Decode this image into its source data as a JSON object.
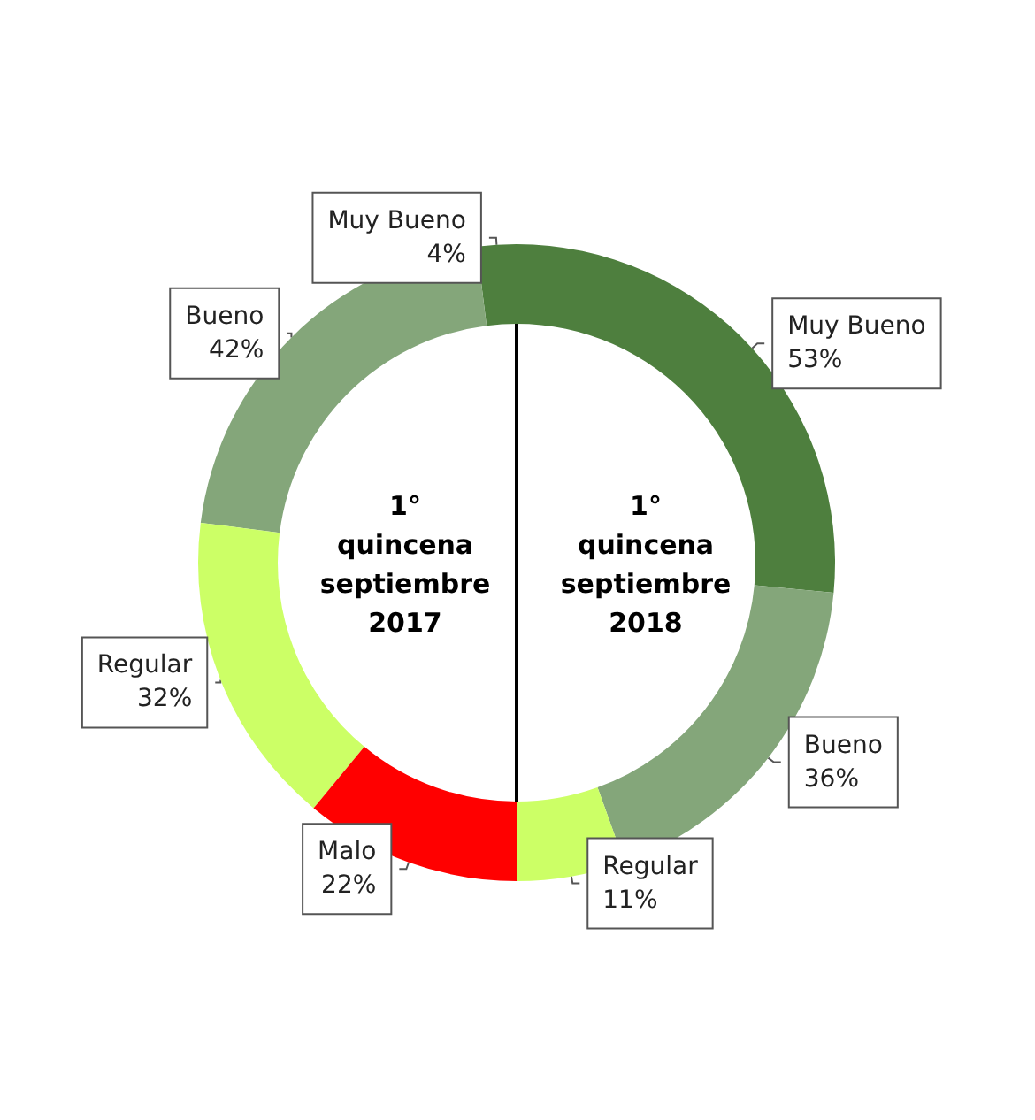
{
  "chart_data": [
    {
      "type": "donut",
      "title": "1° quincena septiembre 2017",
      "categories": [
        "Muy Bueno",
        "Bueno",
        "Regular",
        "Malo"
      ],
      "values": [
        4,
        42,
        32,
        22
      ],
      "value_labels": [
        "4%",
        "42%",
        "32%",
        "22%"
      ],
      "colors": [
        "#4e7f3e",
        "#84a67a",
        "#ccff66",
        "#ff0000"
      ],
      "legend": false
    },
    {
      "type": "donut",
      "title": "1° quincena septiembre 2018",
      "categories": [
        "Muy Bueno",
        "Bueno",
        "Regular"
      ],
      "values": [
        53,
        36,
        11
      ],
      "value_labels": [
        "53%",
        "36%",
        "11%"
      ],
      "colors": [
        "#4e7f3e",
        "#84a67a",
        "#ccff66"
      ],
      "legend": false
    }
  ]
}
